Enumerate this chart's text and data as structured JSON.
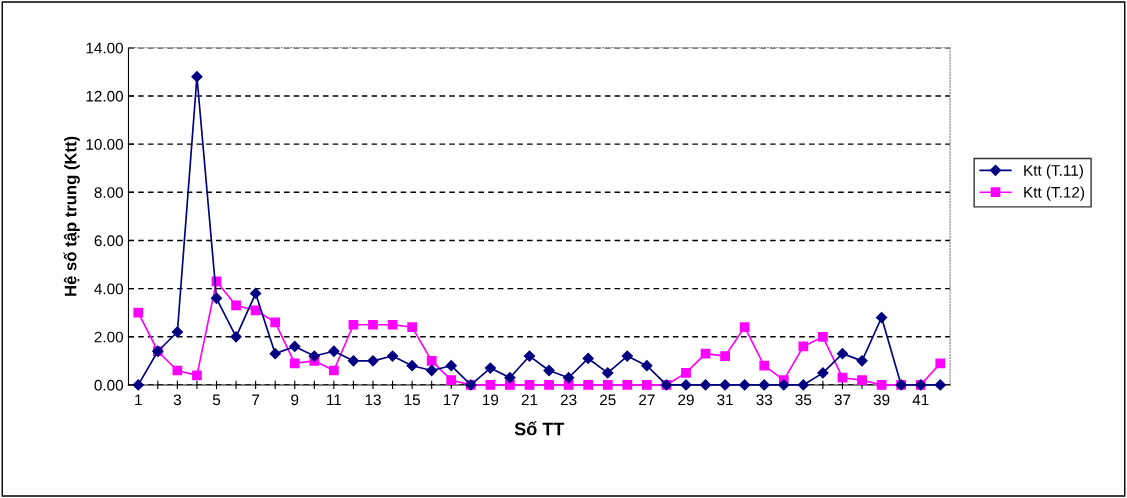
{
  "chart_data": {
    "type": "line",
    "xlabel": "Số TT",
    "ylabel": "Hệ số tập trung (Ktt)",
    "categories": [
      "1",
      null,
      "3",
      null,
      "5",
      null,
      "7",
      null,
      "9",
      null,
      "11",
      null,
      "13",
      null,
      "15",
      null,
      "17",
      null,
      "19",
      null,
      "21",
      null,
      "23",
      null,
      "25",
      null,
      "27",
      null,
      "29",
      null,
      "31",
      null,
      "33",
      null,
      "35",
      null,
      "37",
      null,
      "39",
      null,
      "41",
      null
    ],
    "series": [
      {
        "name": "Ktt (T.11)",
        "color": "#000080",
        "marker": "diamond",
        "values": [
          0,
          1.4,
          2.2,
          12.8,
          3.6,
          2.0,
          3.8,
          1.3,
          1.6,
          1.2,
          1.4,
          1.0,
          1.0,
          1.2,
          0.8,
          0.6,
          0.8,
          0.0,
          0.7,
          0.3,
          1.2,
          0.6,
          0.3,
          1.1,
          0.5,
          1.2,
          0.8,
          0.0,
          0.0,
          0.0,
          0.0,
          0.0,
          0.0,
          0.0,
          0.0,
          0.5,
          1.3,
          1.0,
          2.8,
          0.0,
          0.0,
          0.0
        ]
      },
      {
        "name": "Ktt (T.12)",
        "color": "#ff00ff",
        "marker": "square",
        "values": [
          3.0,
          1.4,
          0.6,
          0.4,
          4.3,
          3.3,
          3.1,
          2.6,
          0.9,
          1.0,
          0.6,
          2.5,
          2.5,
          2.5,
          2.4,
          1.0,
          0.2,
          0.0,
          0.0,
          0.0,
          0.0,
          0.0,
          0.0,
          0.0,
          0.0,
          0.0,
          0.0,
          0.0,
          0.5,
          1.3,
          1.2,
          2.4,
          0.8,
          0.2,
          1.6,
          2.0,
          0.3,
          0.2,
          0.0,
          0.0,
          0.0,
          0.9
        ]
      }
    ],
    "ylim": [
      0,
      14
    ],
    "yticks": [
      {
        "value": 0,
        "label": "0.00"
      },
      {
        "value": 2,
        "label": "2.00"
      },
      {
        "value": 4,
        "label": "4.00"
      },
      {
        "value": 6,
        "label": "6.00"
      },
      {
        "value": 8,
        "label": "8.00"
      },
      {
        "value": 10,
        "label": "10.00"
      },
      {
        "value": 12,
        "label": "12.00"
      },
      {
        "value": 14,
        "label": "14.00"
      }
    ],
    "grid": "y",
    "legend": "right",
    "line_style": "solid"
  }
}
